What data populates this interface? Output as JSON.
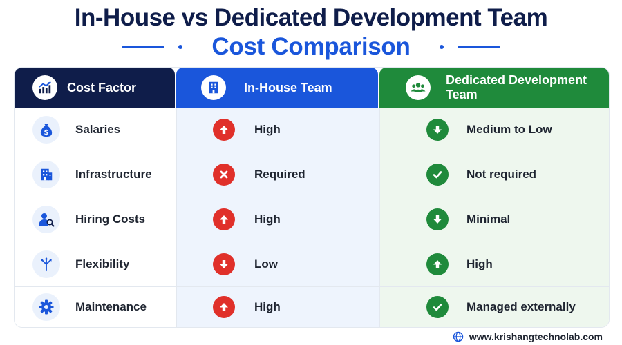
{
  "title": {
    "line1": "In-House vs Dedicated Development Team",
    "line2": "Cost Comparison"
  },
  "colors": {
    "navy": "#0f1d4a",
    "blue": "#1a56db",
    "green": "#1f8a3b",
    "red": "#e0302a"
  },
  "table": {
    "headers": {
      "factor": {
        "label": "Cost Factor",
        "icon": "chart-growth-icon"
      },
      "in_house": {
        "label": "In-House Team",
        "icon": "building-icon"
      },
      "dedicated": {
        "label": "Dedicated Development Team",
        "icon": "team-icon"
      }
    },
    "rows": [
      {
        "factor": "Salaries",
        "factor_icon": "money-bag-icon",
        "in_house": "High",
        "in_house_status": "arrow-up-icon",
        "dedicated": "Medium to Low",
        "dedicated_status": "arrow-down-icon"
      },
      {
        "factor": "Infrastructure",
        "factor_icon": "office-building-icon",
        "in_house": "Required",
        "in_house_status": "cross-icon",
        "dedicated": "Not required",
        "dedicated_status": "check-icon"
      },
      {
        "factor": "Hiring Costs",
        "factor_icon": "user-search-icon",
        "in_house": "High",
        "in_house_status": "arrow-up-icon",
        "dedicated": "Minimal",
        "dedicated_status": "arrow-down-icon"
      },
      {
        "factor": "Flexibility",
        "factor_icon": "arrows-split-icon",
        "in_house": "Low",
        "in_house_status": "arrow-down-icon",
        "dedicated": "High",
        "dedicated_status": "arrow-up-icon"
      },
      {
        "factor": "Maintenance",
        "factor_icon": "gear-icon",
        "in_house": "High",
        "in_house_status": "arrow-up-icon",
        "dedicated": "Managed externally",
        "dedicated_status": "check-icon"
      }
    ]
  },
  "footer": {
    "url": "www.krishangtechnolab.com",
    "icon": "globe-icon"
  }
}
